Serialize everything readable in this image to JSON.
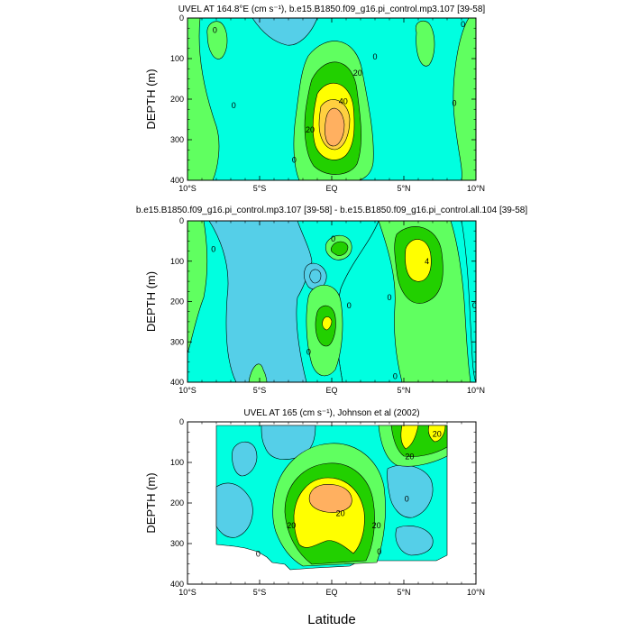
{
  "figure": {
    "xlabel": "Latitude"
  },
  "colors": {
    "c_neg": "#55cfe8",
    "c_zero": "#00ffe0",
    "c_pos1": "#60ff60",
    "c_pos2": "#22d000",
    "c_pos3": "#ffff00",
    "c_pos4": "#ffb060",
    "contour_line": "#000000"
  },
  "chart_data": [
    {
      "id": "panel1",
      "type": "heatmap",
      "title": "UVEL AT 164.8°E (cm s⁻¹), b.e15.B1850.f09_g16.pi_control.mp3.107 [39-58]",
      "ylabel": "DEPTH (m)",
      "xlabel": "",
      "xlim": [
        -10,
        10
      ],
      "ylim": [
        0,
        400
      ],
      "y_inverted": true,
      "x_ticks": [
        -10,
        -5,
        0,
        5,
        10
      ],
      "x_tick_labels": [
        "10°S",
        "5°S",
        "EQ",
        "5°N",
        "10°N"
      ],
      "y_ticks": [
        0,
        100,
        200,
        300,
        400
      ],
      "y_tick_labels": [
        "0",
        "100",
        "200",
        "300",
        "400"
      ],
      "contour_labels": [
        {
          "text": "0",
          "lat": -8.1,
          "depth": 30
        },
        {
          "text": "0",
          "lat": 3.0,
          "depth": 95
        },
        {
          "text": "0",
          "lat": -6.8,
          "depth": 215
        },
        {
          "text": "0",
          "lat": -2.6,
          "depth": 350
        },
        {
          "text": "0",
          "lat": 8.5,
          "depth": 210
        },
        {
          "text": "0",
          "lat": 9.1,
          "depth": 15
        },
        {
          "text": "20",
          "lat": 1.8,
          "depth": 135
        },
        {
          "text": "40",
          "lat": 0.8,
          "depth": 205
        },
        {
          "text": "20",
          "lat": -1.5,
          "depth": 275
        }
      ]
    },
    {
      "id": "panel2",
      "type": "heatmap",
      "title": "b.e15.B1850.f09_g16.pi_control.mp3.107 [39-58] - b.e15.B1850.f09_g16.pi_control.all.104 [39-58]",
      "ylabel": "DEPTH (m)",
      "xlabel": "",
      "xlim": [
        -10,
        10
      ],
      "ylim": [
        0,
        400
      ],
      "y_inverted": true,
      "x_ticks": [
        -10,
        -5,
        0,
        5,
        10
      ],
      "x_tick_labels": [
        "10°S",
        "5°S",
        "EQ",
        "5°N",
        "10°N"
      ],
      "y_ticks": [
        0,
        100,
        200,
        300,
        400
      ],
      "y_tick_labels": [
        "0",
        "100",
        "200",
        "300",
        "400"
      ],
      "contour_labels": [
        {
          "text": "0",
          "lat": -8.2,
          "depth": 70
        },
        {
          "text": "0",
          "lat": 0.1,
          "depth": 45
        },
        {
          "text": "0",
          "lat": 1.2,
          "depth": 210
        },
        {
          "text": "0",
          "lat": -1.6,
          "depth": 325
        },
        {
          "text": "0",
          "lat": 4.0,
          "depth": 190
        },
        {
          "text": "0",
          "lat": 4.4,
          "depth": 385
        },
        {
          "text": "0",
          "lat": 9.9,
          "depth": 210
        },
        {
          "text": "4",
          "lat": 6.6,
          "depth": 100
        }
      ]
    },
    {
      "id": "panel3",
      "type": "heatmap",
      "title": "UVEL AT 165 (cm s⁻¹), Johnson et al (2002)",
      "ylabel": "DEPTH (m)",
      "xlabel": "Latitude",
      "xlim": [
        -10,
        10
      ],
      "ylim": [
        0,
        400
      ],
      "y_inverted": true,
      "x_ticks": [
        -10,
        -5,
        0,
        5,
        10
      ],
      "x_tick_labels": [
        "10°S",
        "5°S",
        "EQ",
        "5°N",
        "10°N"
      ],
      "y_ticks": [
        0,
        100,
        200,
        300,
        400
      ],
      "y_tick_labels": [
        "0",
        "100",
        "200",
        "300",
        "400"
      ],
      "contour_labels": [
        {
          "text": "0",
          "lat": -5.1,
          "depth": 325
        },
        {
          "text": "0",
          "lat": 5.2,
          "depth": 190
        },
        {
          "text": "0",
          "lat": 3.3,
          "depth": 320
        },
        {
          "text": "20",
          "lat": -2.8,
          "depth": 255
        },
        {
          "text": "20",
          "lat": 0.6,
          "depth": 225
        },
        {
          "text": "20",
          "lat": 3.1,
          "depth": 255
        },
        {
          "text": "20",
          "lat": 5.4,
          "depth": 85
        },
        {
          "text": "20",
          "lat": 7.3,
          "depth": 30
        }
      ]
    }
  ]
}
